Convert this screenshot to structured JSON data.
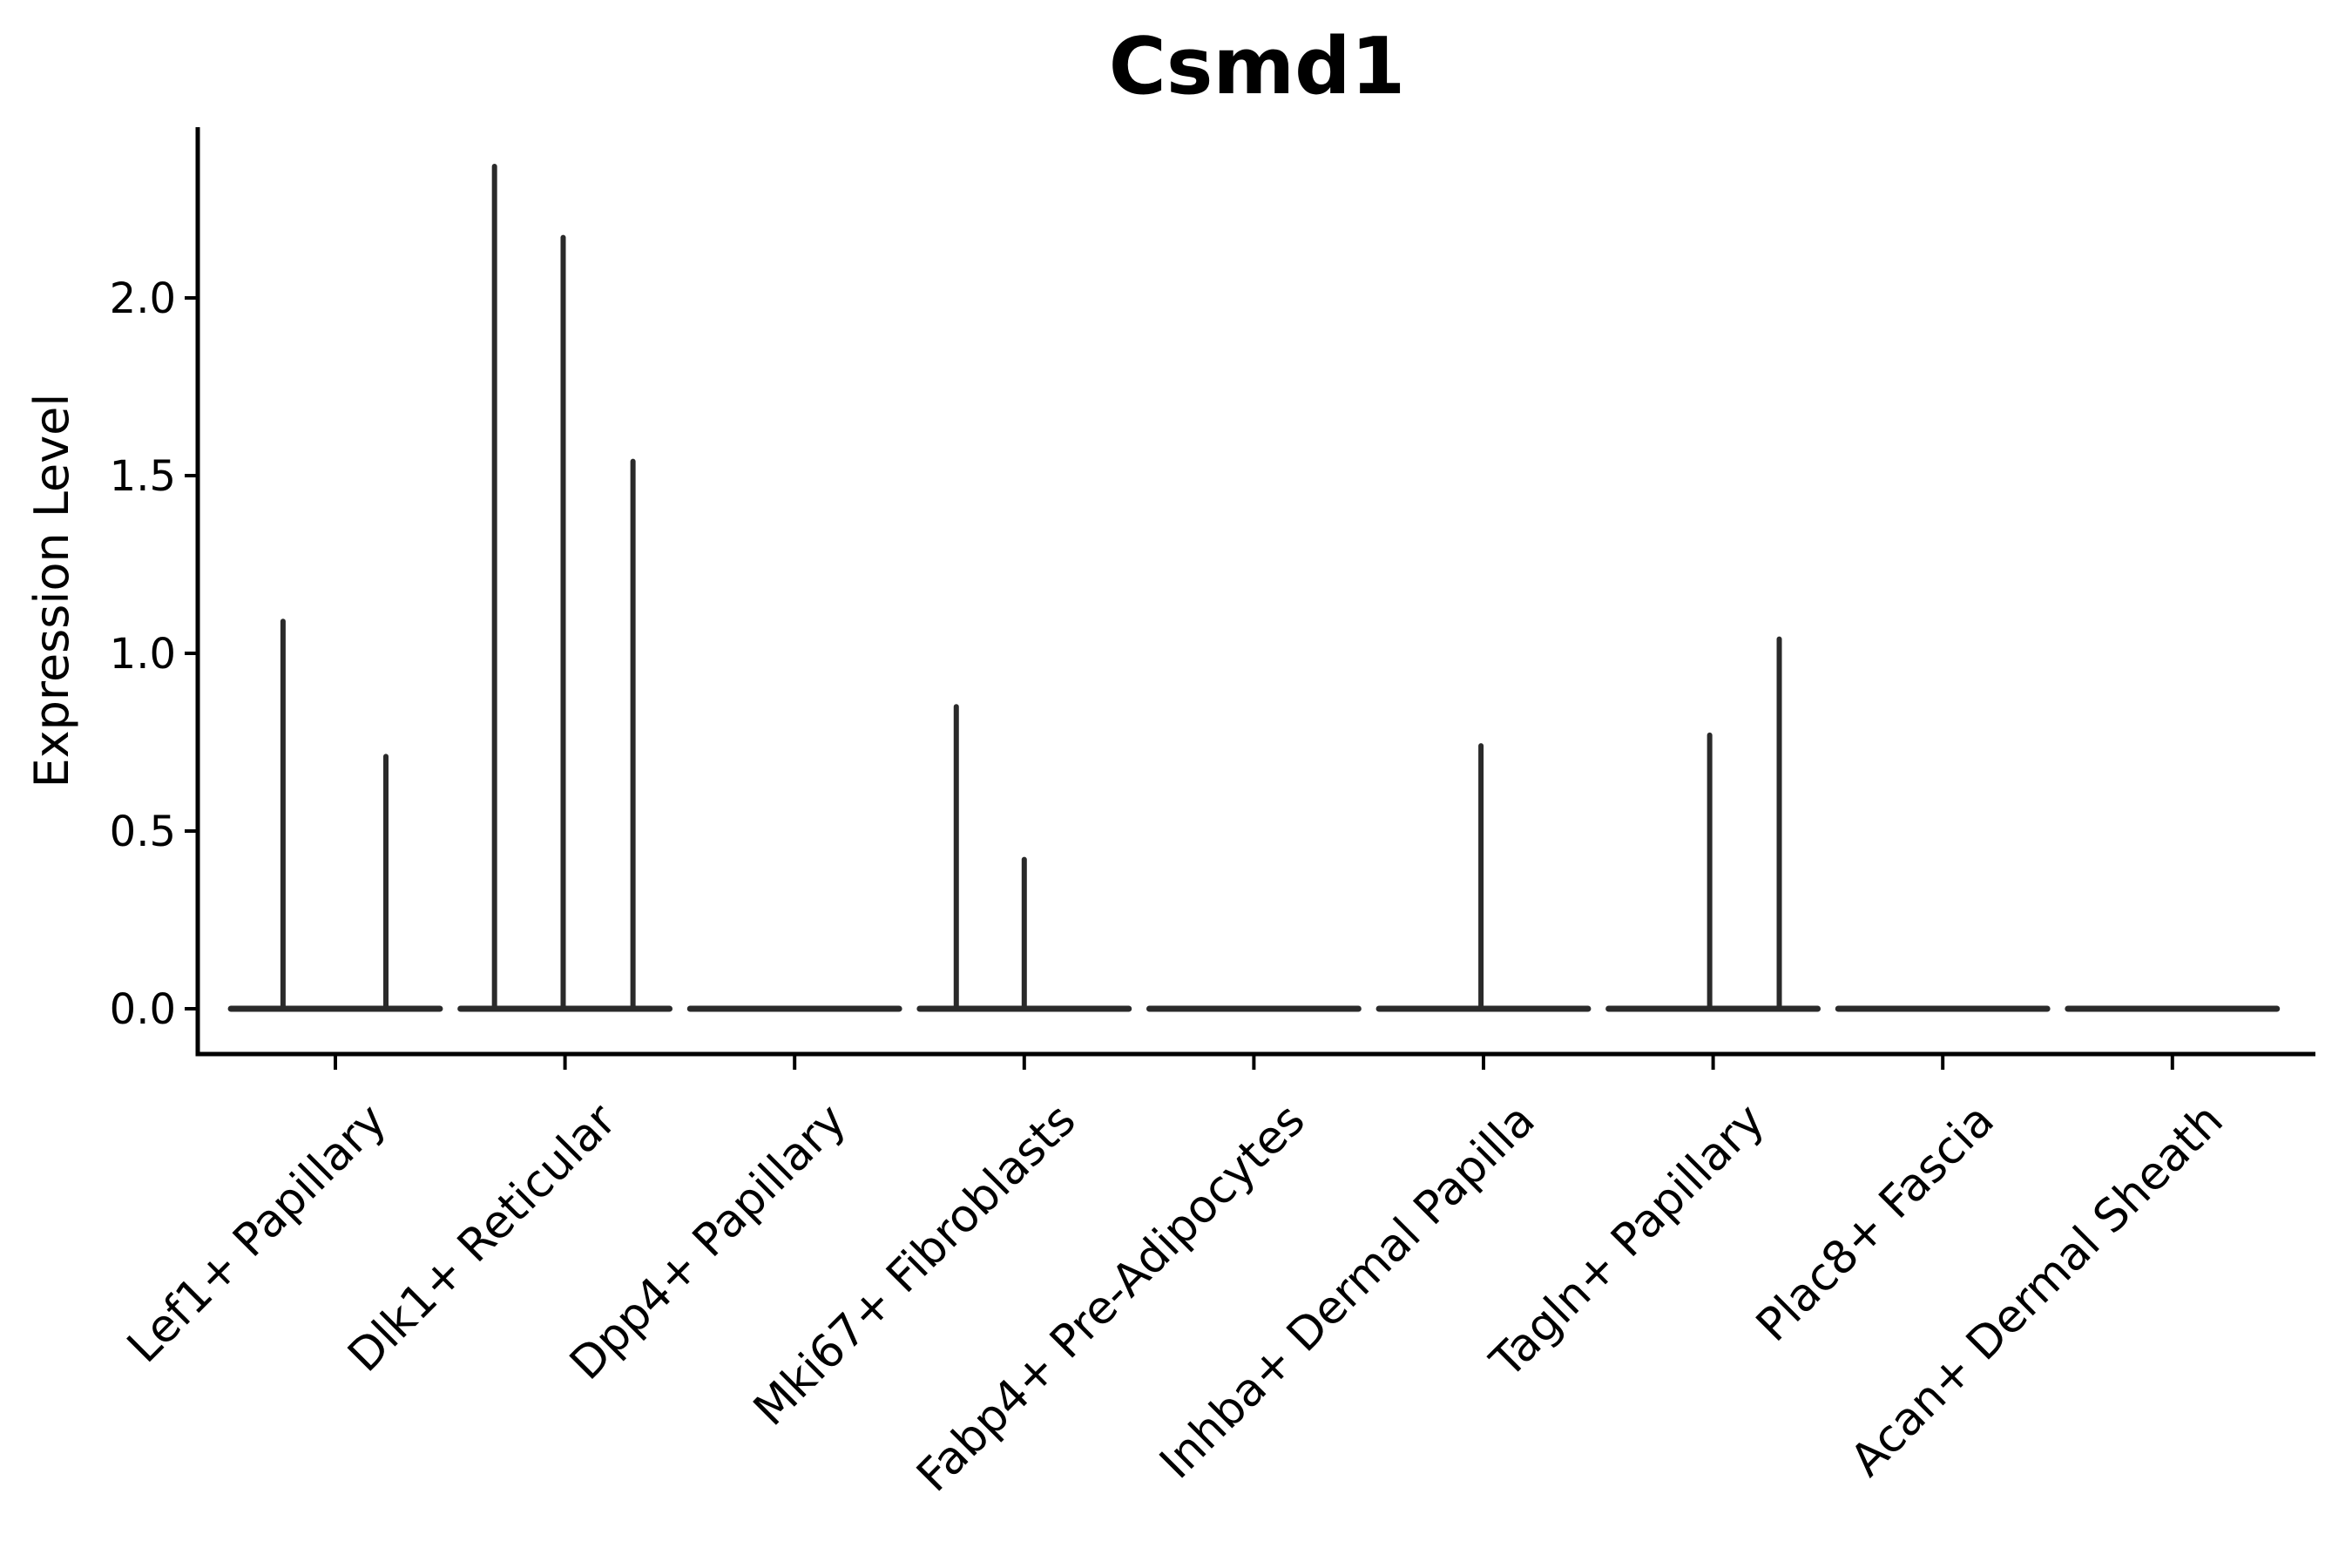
{
  "chart_data": {
    "type": "violin",
    "title": "Csmd1",
    "ylabel": "Expression Level",
    "xlabel": "",
    "legend": "none",
    "grid": false,
    "categories": [
      "Lef1+ Papillary",
      "Dlk1+ Reticular",
      "Dpp4+ Papillary",
      "Mki67+ Fibroblasts",
      "Fabp4+ Pre-Adipocytes",
      "Inhba+ Dermal Papilla",
      "Tagln+ Papillary",
      "Plac8+ Fascia",
      "Acan+ Dermal Sheath"
    ],
    "yticks": [
      0.0,
      0.5,
      1.0,
      1.5,
      2.0
    ],
    "ytick_labels": [
      "0.0",
      "0.5",
      "1.0",
      "1.5",
      "2.0"
    ],
    "ylim": [
      -0.13,
      2.48
    ],
    "violin_halfwidth": 0.455,
    "series": [
      {
        "name": "Lef1+ Papillary",
        "baseline_value": 0.0,
        "spikes": [
          {
            "offset": -0.228,
            "value": 1.09
          },
          {
            "offset": 0.22,
            "value": 0.71
          }
        ]
      },
      {
        "name": "Dlk1+ Reticular",
        "baseline_value": 0.0,
        "spikes": [
          {
            "offset": -0.307,
            "value": 2.37
          },
          {
            "offset": -0.008,
            "value": 2.17
          },
          {
            "offset": 0.296,
            "value": 1.54
          }
        ]
      },
      {
        "name": "Dpp4+ Papillary",
        "baseline_value": 0.0,
        "spikes": []
      },
      {
        "name": "Mki67+ Fibroblasts",
        "baseline_value": 0.0,
        "spikes": [
          {
            "offset": -0.296,
            "value": 0.85
          },
          {
            "offset": 0.0,
            "value": 0.42
          }
        ]
      },
      {
        "name": "Fabp4+ Pre-Adipocytes",
        "baseline_value": 0.0,
        "spikes": []
      },
      {
        "name": "Inhba+ Dermal Papilla",
        "baseline_value": 0.0,
        "spikes": [
          {
            "offset": -0.011,
            "value": 0.74
          }
        ]
      },
      {
        "name": "Tagln+ Papillary",
        "baseline_value": 0.0,
        "spikes": [
          {
            "offset": -0.015,
            "value": 0.77
          },
          {
            "offset": 0.288,
            "value": 1.04
          }
        ]
      },
      {
        "name": "Plac8+ Fascia",
        "baseline_value": 0.0,
        "spikes": []
      },
      {
        "name": "Acan+ Dermal Sheath",
        "baseline_value": 0.0,
        "spikes": []
      }
    ],
    "colors": {
      "violin": "#2a2a2a",
      "axis": "#000000",
      "text": "#000000",
      "background": "#ffffff"
    }
  }
}
